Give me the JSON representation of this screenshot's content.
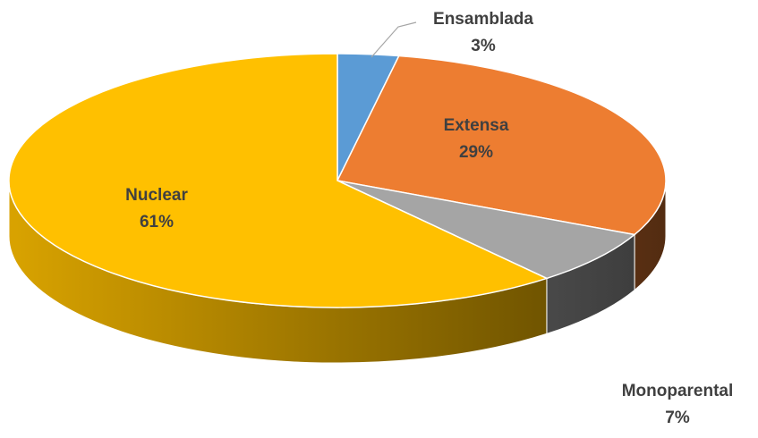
{
  "chart_data": {
    "type": "pie",
    "categories": [
      "Ensamblada",
      "Extensa",
      "Monoparental",
      "Nuclear"
    ],
    "values": [
      3,
      29,
      7,
      61
    ],
    "value_labels": [
      "3%",
      "29%",
      "7%",
      "61%"
    ],
    "colors": [
      "#5b9bd5",
      "#ed7d31",
      "#a5a5a5",
      "#ffc000"
    ]
  }
}
